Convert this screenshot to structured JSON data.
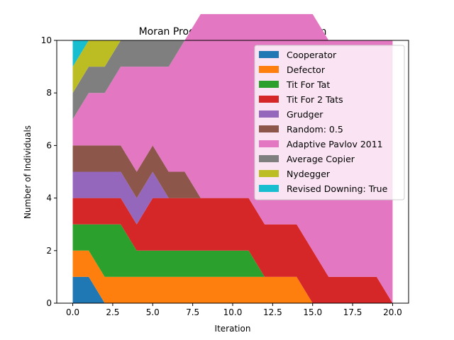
{
  "chart_data": {
    "type": "area",
    "title": "Moran Process Population by Iteration",
    "xlabel": "Iteration",
    "ylabel": "Number of Individuals",
    "xlim": [
      -1,
      21
    ],
    "ylim": [
      0,
      10
    ],
    "xticks": [
      0.0,
      2.5,
      5.0,
      7.5,
      10.0,
      12.5,
      15.0,
      17.5,
      20.0
    ],
    "xtick_labels": [
      "0.0",
      "2.5",
      "5.0",
      "7.5",
      "10.0",
      "12.5",
      "15.0",
      "17.5",
      "20.0"
    ],
    "yticks": [
      0,
      2,
      4,
      6,
      8,
      10
    ],
    "ytick_labels": [
      "0",
      "2",
      "4",
      "6",
      "8",
      "10"
    ],
    "grid": false,
    "legend_placement": "top-right",
    "x": [
      0,
      1,
      2,
      3,
      4,
      5,
      6,
      7,
      8,
      9,
      10,
      11,
      12,
      13,
      14,
      15,
      16,
      17,
      18,
      19,
      20
    ],
    "series": [
      {
        "name": "Cooperator",
        "color": "#1f77b4",
        "values": [
          1,
          1,
          0,
          0,
          0,
          0,
          0,
          0,
          0,
          0,
          0,
          0,
          0,
          0,
          0,
          0,
          0,
          0,
          0,
          0,
          0
        ]
      },
      {
        "name": "Defector",
        "color": "#ff7f0e",
        "values": [
          1,
          1,
          1,
          1,
          1,
          1,
          1,
          1,
          1,
          1,
          1,
          1,
          1,
          1,
          1,
          0,
          0,
          0,
          0,
          0,
          0
        ]
      },
      {
        "name": "Tit For Tat",
        "color": "#2ca02c",
        "values": [
          1,
          1,
          2,
          2,
          1,
          1,
          1,
          1,
          1,
          1,
          1,
          1,
          0,
          0,
          0,
          0,
          0,
          0,
          0,
          0,
          0
        ]
      },
      {
        "name": "Tit For 2 Tats",
        "color": "#d62728",
        "values": [
          1,
          1,
          1,
          1,
          1,
          2,
          2,
          2,
          2,
          2,
          2,
          2,
          2,
          2,
          2,
          2,
          1,
          1,
          1,
          1,
          0
        ]
      },
      {
        "name": "Grudger",
        "color": "#9467bd",
        "values": [
          1,
          1,
          1,
          1,
          1,
          1,
          0,
          0,
          0,
          0,
          0,
          0,
          0,
          0,
          0,
          0,
          0,
          0,
          0,
          0,
          0
        ]
      },
      {
        "name": "Random: 0.5",
        "color": "#8c564b",
        "values": [
          1,
          1,
          1,
          1,
          1,
          1,
          1,
          1,
          0,
          0,
          0,
          0,
          0,
          0,
          0,
          0,
          0,
          0,
          0,
          0,
          0
        ]
      },
      {
        "name": "Adaptive Pavlov 2011",
        "color": "#e377c2",
        "values": [
          1,
          2,
          2,
          3,
          4,
          3,
          4,
          5,
          7,
          7,
          7,
          7,
          8,
          8,
          8,
          9,
          9,
          9,
          9,
          9,
          10
        ]
      },
      {
        "name": "Average Copier",
        "color": "#7f7f7f",
        "values": [
          1,
          1,
          1,
          1,
          1,
          1,
          1,
          0,
          0,
          0,
          0,
          0,
          0,
          0,
          0,
          0,
          0,
          0,
          0,
          0,
          0
        ]
      },
      {
        "name": "Nydegger",
        "color": "#bcbd22",
        "values": [
          1,
          1,
          1,
          0,
          0,
          0,
          0,
          0,
          0,
          0,
          0,
          0,
          0,
          0,
          0,
          0,
          0,
          0,
          0,
          0,
          0
        ]
      },
      {
        "name": "Revised Downing: True",
        "color": "#17becf",
        "values": [
          1,
          0,
          0,
          0,
          0,
          0,
          0,
          0,
          0,
          0,
          0,
          0,
          0,
          0,
          0,
          0,
          0,
          0,
          0,
          0,
          0
        ]
      }
    ]
  }
}
